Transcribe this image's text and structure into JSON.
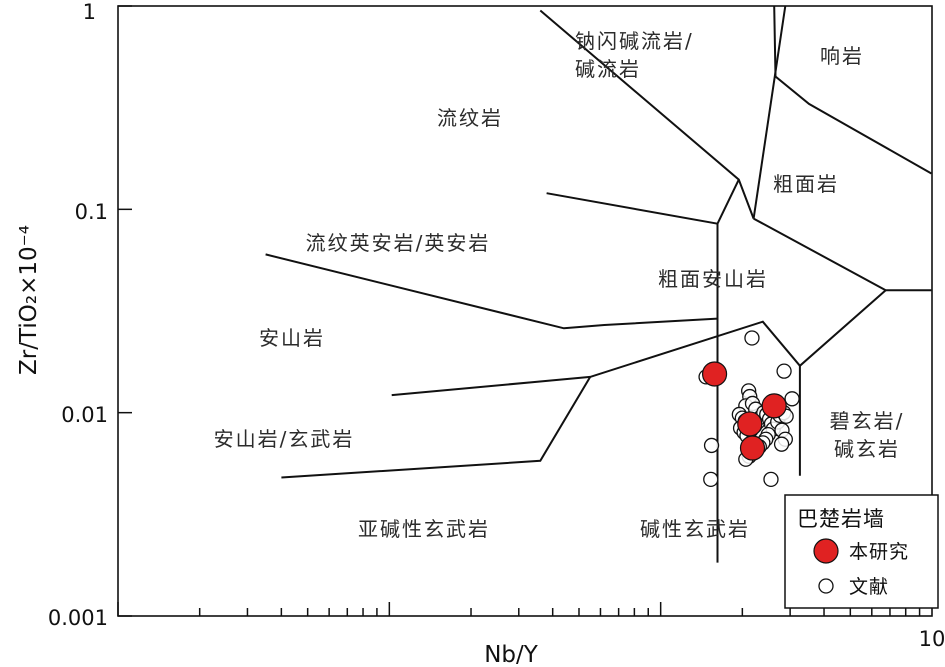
{
  "chart_data": {
    "type": "scatter",
    "title": "",
    "xlabel": "Nb/Y",
    "ylabel": "Zr/TiO₂×10⁻⁴",
    "x_scale": "log",
    "y_scale": "log",
    "xlim": [
      0.01,
      10
    ],
    "ylim": [
      0.001,
      1
    ],
    "x_tick_labels": [
      "10"
    ],
    "y_tick_labels": [
      "1",
      "0.1",
      "0.01",
      "0.001"
    ],
    "grid": false,
    "legend": {
      "placement": "bottom-right",
      "title": "巴楚岩墙"
    },
    "series": [
      {
        "name": "本研究",
        "marker": "filled-circle",
        "color": "#e02222",
        "points": [
          [
            1.58,
            0.0155
          ],
          [
            2.13,
            0.0088
          ],
          [
            2.18,
            0.0067
          ],
          [
            2.62,
            0.0108
          ]
        ]
      },
      {
        "name": "文献",
        "marker": "open-circle",
        "color": "#111111",
        "points": [
          [
            1.47,
            0.015
          ],
          [
            1.54,
            0.0069
          ],
          [
            1.53,
            0.0047
          ],
          [
            2.17,
            0.0233
          ],
          [
            2.85,
            0.016
          ],
          [
            3.05,
            0.0117
          ],
          [
            2.11,
            0.0128
          ],
          [
            2.13,
            0.012
          ],
          [
            2.06,
            0.0108
          ],
          [
            2.18,
            0.0111
          ],
          [
            2.24,
            0.0104
          ],
          [
            1.95,
            0.0098
          ],
          [
            2.0,
            0.0094
          ],
          [
            2.05,
            0.0091
          ],
          [
            2.1,
            0.0087
          ],
          [
            1.97,
            0.0084
          ],
          [
            2.03,
            0.008
          ],
          [
            2.08,
            0.0077
          ],
          [
            2.15,
            0.0082
          ],
          [
            2.22,
            0.0086
          ],
          [
            2.28,
            0.009
          ],
          [
            2.34,
            0.0095
          ],
          [
            2.4,
            0.01
          ],
          [
            2.46,
            0.0098
          ],
          [
            2.52,
            0.0093
          ],
          [
            2.56,
            0.0088
          ],
          [
            2.6,
            0.0083
          ],
          [
            2.49,
            0.0078
          ],
          [
            2.44,
            0.0074
          ],
          [
            2.38,
            0.0071
          ],
          [
            2.31,
            0.0068
          ],
          [
            2.25,
            0.0065
          ],
          [
            2.12,
            0.0061
          ],
          [
            2.06,
            0.0059
          ],
          [
            2.7,
            0.009
          ],
          [
            2.75,
            0.0097
          ],
          [
            2.84,
            0.01
          ],
          [
            2.9,
            0.0096
          ],
          [
            2.8,
            0.0082
          ],
          [
            2.88,
            0.0074
          ],
          [
            2.79,
            0.007
          ],
          [
            2.55,
            0.0047
          ]
        ]
      }
    ],
    "field_labels": [
      "流纹岩",
      "钠闪碱流岩/",
      "碱流岩",
      "响岩",
      "粗面岩",
      "流纹英安岩/英安岩",
      "粗面安山岩",
      "安山岩",
      "安山岩/玄武岩",
      "碧玄岩/",
      "碱玄岩",
      "亚碱性玄武岩",
      "碱性玄武岩"
    ],
    "field_boundaries": [
      [
        [
          0.38,
          0.12
        ],
        [
          1.62,
          0.085
        ],
        [
          1.62,
          0.028
        ]
      ],
      [
        [
          1.62,
          0.085
        ],
        [
          1.94,
          0.14
        ]
      ],
      [
        [
          0.36,
          0.95
        ],
        [
          1.94,
          0.14
        ],
        [
          2.2,
          0.09
        ]
      ],
      [
        [
          2.2,
          0.09
        ],
        [
          2.88,
          1.0
        ]
      ],
      [
        [
          2.62,
          1.0
        ],
        [
          2.65,
          0.45
        ],
        [
          3.52,
          0.33
        ],
        [
          9.95,
          0.15
        ]
      ],
      [
        [
          0.035,
          0.06
        ],
        [
          0.44,
          0.026
        ],
        [
          0.62,
          0.027
        ],
        [
          1.62,
          0.029
        ]
      ],
      [
        [
          2.2,
          0.09
        ],
        [
          6.75,
          0.04
        ],
        [
          9.95,
          0.04
        ]
      ],
      [
        [
          6.75,
          0.04
        ],
        [
          3.26,
          0.017
        ],
        [
          2.38,
          0.028
        ],
        [
          0.55,
          0.015
        ],
        [
          0.102,
          0.0122
        ]
      ],
      [
        [
          3.26,
          0.017
        ],
        [
          3.26,
          0.0049
        ]
      ],
      [
        [
          1.62,
          0.029
        ],
        [
          1.62,
          0.00183
        ]
      ],
      [
        [
          0.55,
          0.015
        ],
        [
          0.36,
          0.0058
        ],
        [
          0.04,
          0.0048
        ]
      ]
    ]
  }
}
